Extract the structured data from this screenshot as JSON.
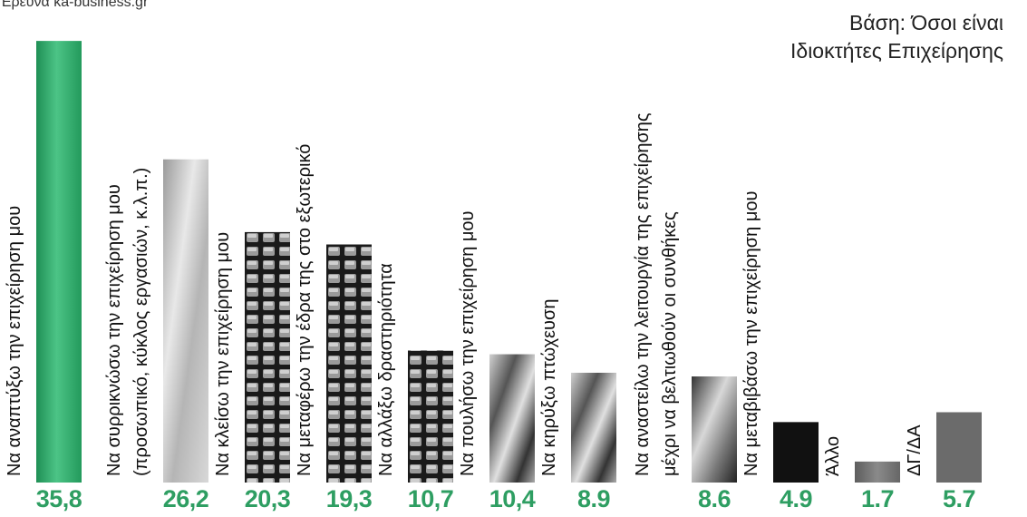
{
  "source_note": "Έρευνα ka-business.gr",
  "base_note": [
    "Βάση: Όσοι είναι",
    "Ιδιοκτήτες Επιχείρησης"
  ],
  "colors": {
    "first_bar": "#2fa86a",
    "value_green": "#2e9e62",
    "last_bar": "#6b6b6b",
    "dark_bar": "#111111",
    "label_text": "#111111"
  },
  "chart_data": {
    "type": "bar",
    "title": "",
    "xlabel": "",
    "ylabel": "",
    "categories": [
      "Να αναπτύξω την επιχείρηση μου",
      "Να συρρικνώσω την επιχείρηση μου (προσωπικό, κύκλος εργασιών, κ.λ.π.)",
      "Να κλείσω την επιχείρηση μου",
      "Να μεταφέρω την έδρα της στο εξωτερικό",
      "Να αλλάξω δραστηριότητα",
      "Να πουλήσω την επιχείρηση μου",
      "Να κηρύξω πτώχευση",
      "Να αναστείλω την λειτουργία της επιχείρησης μέχρι να βελτιωθούν οι συνθήκες",
      "Να μεταβιβάσω την επιχείρηση μου",
      "Άλλο",
      "ΔΓ/ΔΑ"
    ],
    "label_lines": [
      [
        "Να αναπτύξω την επιχείρηση μου"
      ],
      [
        "Να συρρικνώσω την επιχείρηση μου",
        "(προσωπικό, κύκλος εργασιών, κ.λ.π.)"
      ],
      [
        "Να κλείσω την επιχείρηση μου"
      ],
      [
        "Να μεταφέρω την έδρα της στο εξωτερικό"
      ],
      [
        "Να αλλάξω δραστηριότητα"
      ],
      [
        "Να πουλήσω την επιχείρηση μου"
      ],
      [
        "Να κηρύξω πτώχευση"
      ],
      [
        "Να αναστείλω την λειτουργία της επιχείρησης",
        "μέχρι να βελτιωθούν οι συνθήκες"
      ],
      [
        "Να μεταβιβάσω την επιχείρηση μου"
      ],
      [
        "Άλλο"
      ],
      [
        "ΔΓ/ΔΑ"
      ]
    ],
    "values": [
      35.8,
      26.2,
      20.3,
      19.3,
      10.7,
      10.4,
      8.9,
      8.6,
      4.9,
      1.7,
      5.7
    ],
    "value_labels": [
      "35,8",
      "26,2",
      "20,3",
      "19,3",
      "10,7",
      "10,4",
      "8.9",
      "8.6",
      "4.9",
      "1.7",
      "5.7"
    ],
    "grid": false,
    "legend": "none"
  }
}
